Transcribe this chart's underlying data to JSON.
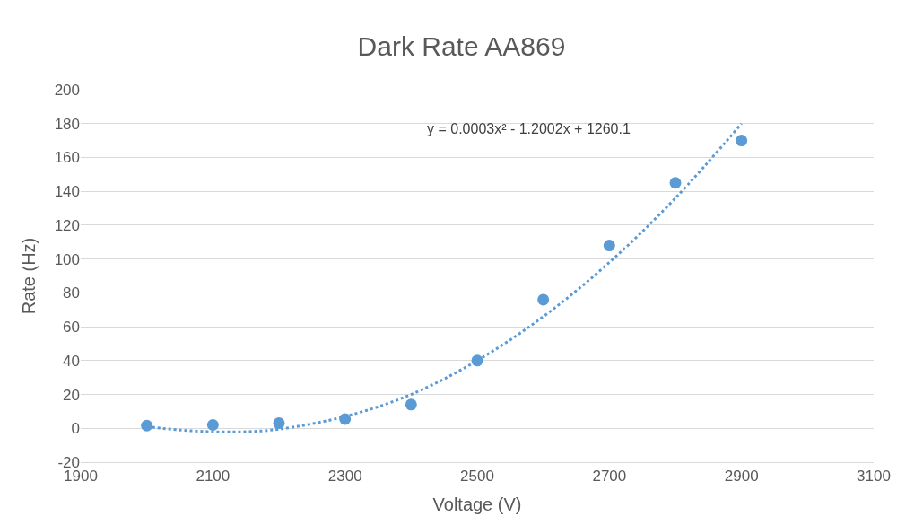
{
  "chart_data": {
    "type": "scatter",
    "title": "Dark Rate AA869",
    "xlabel": "Voltage (V)",
    "ylabel": "Rate (Hz)",
    "xlim": [
      1900,
      3100
    ],
    "xticks": [
      1900,
      2100,
      2300,
      2500,
      2700,
      2900,
      3100
    ],
    "ylim": [
      -20,
      200
    ],
    "yticks": [
      -20,
      0,
      20,
      40,
      60,
      80,
      100,
      120,
      140,
      160,
      180,
      200
    ],
    "grid": "y",
    "annotations": [
      "y = 0.0003x² - 1.2002x + 1260.1"
    ],
    "series": [
      {
        "marker": "circle",
        "color": "#5b9bd5",
        "x": [
          2000,
          2100,
          2200,
          2300,
          2400,
          2500,
          2600,
          2700,
          2800,
          2900
        ],
        "values": [
          1.6,
          2,
          3,
          5.5,
          14,
          40,
          76,
          108,
          145,
          170
        ]
      },
      {
        "type": "line",
        "marker": "none",
        "line_style": "dotted",
        "color": "#5b9bd5",
        "x": [
          2000,
          2050,
          2100,
          2150,
          2200,
          2300,
          2400,
          2500,
          2600,
          2700,
          2800,
          2900
        ],
        "values": [
          1,
          -1,
          -2,
          -2,
          -0.5,
          7,
          20,
          40,
          66,
          98,
          136,
          180
        ]
      }
    ]
  }
}
